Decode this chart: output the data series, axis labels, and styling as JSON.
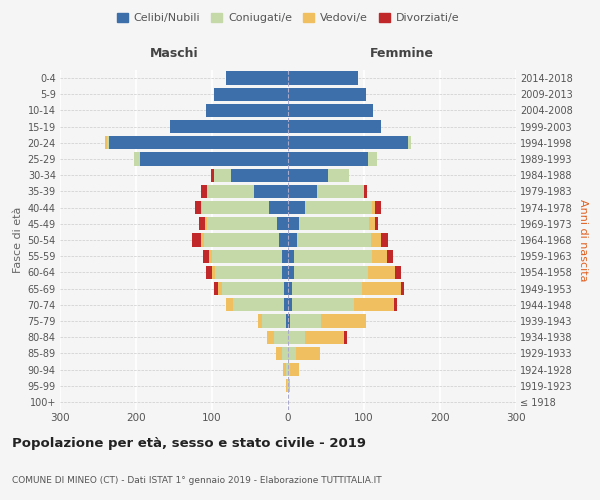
{
  "age_groups": [
    "100+",
    "95-99",
    "90-94",
    "85-89",
    "80-84",
    "75-79",
    "70-74",
    "65-69",
    "60-64",
    "55-59",
    "50-54",
    "45-49",
    "40-44",
    "35-39",
    "30-34",
    "25-29",
    "20-24",
    "15-19",
    "10-14",
    "5-9",
    "0-4"
  ],
  "birth_years": [
    "≤ 1918",
    "1919-1923",
    "1924-1928",
    "1929-1933",
    "1934-1938",
    "1939-1943",
    "1944-1948",
    "1949-1953",
    "1954-1958",
    "1959-1963",
    "1964-1968",
    "1969-1973",
    "1974-1978",
    "1979-1983",
    "1984-1988",
    "1989-1993",
    "1994-1998",
    "1999-2003",
    "2004-2008",
    "2009-2013",
    "2014-2018"
  ],
  "males": {
    "celibi": [
      0,
      0,
      0,
      0,
      0,
      2,
      5,
      5,
      8,
      8,
      12,
      15,
      25,
      45,
      75,
      195,
      235,
      155,
      108,
      98,
      82
    ],
    "coniugati": [
      0,
      1,
      3,
      8,
      18,
      32,
      68,
      82,
      88,
      92,
      98,
      92,
      88,
      62,
      22,
      8,
      3,
      0,
      0,
      0,
      0
    ],
    "vedovi": [
      0,
      1,
      3,
      8,
      10,
      5,
      8,
      5,
      4,
      4,
      4,
      2,
      1,
      0,
      0,
      0,
      3,
      0,
      0,
      0,
      0
    ],
    "divorziati": [
      0,
      0,
      0,
      0,
      0,
      0,
      0,
      5,
      8,
      8,
      12,
      8,
      8,
      8,
      4,
      0,
      0,
      0,
      0,
      0,
      0
    ]
  },
  "females": {
    "nubili": [
      0,
      0,
      0,
      0,
      0,
      2,
      5,
      5,
      8,
      8,
      12,
      15,
      22,
      38,
      52,
      105,
      158,
      122,
      112,
      102,
      92
    ],
    "coniugate": [
      0,
      1,
      3,
      10,
      22,
      42,
      82,
      92,
      97,
      102,
      97,
      92,
      88,
      62,
      28,
      12,
      4,
      0,
      0,
      0,
      0
    ],
    "vedove": [
      0,
      2,
      12,
      32,
      52,
      58,
      52,
      52,
      36,
      20,
      14,
      8,
      4,
      0,
      0,
      0,
      0,
      0,
      0,
      0,
      0
    ],
    "divorziate": [
      0,
      0,
      0,
      0,
      4,
      0,
      4,
      4,
      8,
      8,
      8,
      4,
      8,
      4,
      0,
      0,
      0,
      0,
      0,
      0,
      0
    ]
  },
  "colors": {
    "celibi": "#3d6faa",
    "coniugati": "#c5d9a8",
    "vedovi": "#f0c060",
    "divorziati": "#c0282a"
  },
  "legend_labels": [
    "Celibi/Nubili",
    "Coniugati/e",
    "Vedovi/e",
    "Divorziati/e"
  ],
  "title": "Popolazione per età, sesso e stato civile - 2019",
  "subtitle": "COMUNE DI MINEO (CT) - Dati ISTAT 1° gennaio 2019 - Elaborazione TUTTITALIA.IT",
  "xlabel_left": "Maschi",
  "xlabel_right": "Femmine",
  "ylabel_left": "Fasce di età",
  "ylabel_right": "Anni di nascita",
  "xlim": 300,
  "bg_color": "#f5f5f5"
}
